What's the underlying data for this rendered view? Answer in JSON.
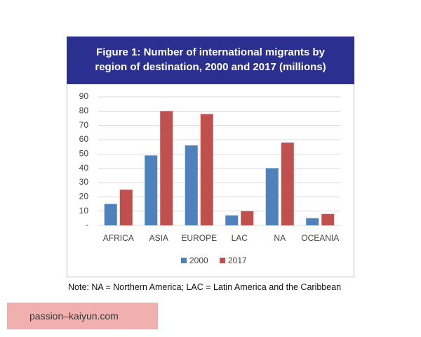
{
  "chart_data": {
    "type": "bar",
    "title": "Figure 1:  Number of international migrants by region of destination, 2000 and 2017 (millions)",
    "categories": [
      "AFRICA",
      "ASIA",
      "EUROPE",
      "LAC",
      "NA",
      "OCEANIA"
    ],
    "series": [
      {
        "name": "2000",
        "color": "#4f81bd",
        "values": [
          15,
          49,
          56,
          7,
          40,
          5
        ]
      },
      {
        "name": "2017",
        "color": "#c0504d",
        "values": [
          25,
          80,
          78,
          10,
          58,
          8
        ]
      }
    ],
    "ylim": [
      0,
      90
    ],
    "yticks": [
      {
        "value": 0,
        "label": "-"
      },
      10,
      20,
      30,
      40,
      50,
      60,
      70,
      80,
      90
    ],
    "grid": true,
    "legend": "bottom",
    "note": "Note: NA = Northern America; LAC = Latin America and the Caribbean"
  },
  "watermark": "passion–kaiyun.com"
}
